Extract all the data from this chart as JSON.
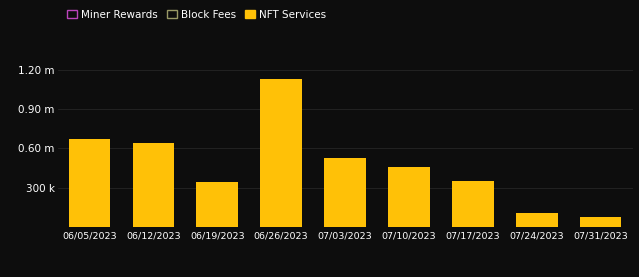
{
  "categories": [
    "06/05/2023",
    "06/12/2023",
    "06/19/2023",
    "06/26/2023",
    "07/03/2023",
    "07/10/2023",
    "07/17/2023",
    "07/24/2023",
    "07/31/2023"
  ],
  "values": [
    670000,
    640000,
    340000,
    1130000,
    530000,
    460000,
    350000,
    110000,
    80000
  ],
  "bar_color": "#FFC107",
  "background_color": "#0d0d0d",
  "text_color": "#ffffff",
  "grid_color": "#2a2a2a",
  "ylim": [
    0,
    1350000
  ],
  "ytick_vals": [
    0,
    300000,
    600000,
    900000,
    1200000
  ],
  "ytick_labels": [
    "",
    "300 k",
    "0.60 m",
    "0.90 m",
    "1.20 m"
  ],
  "legend": [
    {
      "label": "Miner Rewards",
      "facecolor": "none",
      "edgecolor": "#bb44bb"
    },
    {
      "label": "Block Fees",
      "facecolor": "none",
      "edgecolor": "#999966"
    },
    {
      "label": "NFT Services",
      "facecolor": "#FFC107",
      "edgecolor": "#FFC107"
    }
  ]
}
